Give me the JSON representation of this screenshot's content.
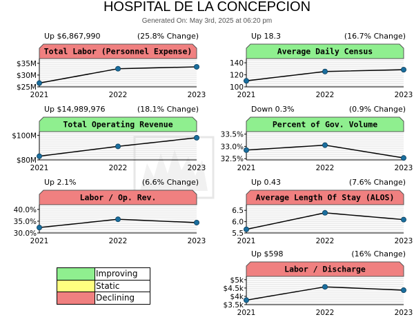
{
  "header": {
    "title": "HOSPITAL DE LA CONCEPCION",
    "subtitle": "Generated On: May 3rd, 2025 at 06:20 pm"
  },
  "colors": {
    "improving": "#8fef8f",
    "static": "#ffff80",
    "declining": "#f08080",
    "line": "#000000",
    "marker": "#1a6e9e"
  },
  "legend": [
    {
      "label": "Improving",
      "status": "improving"
    },
    {
      "label": "Static",
      "status": "static"
    },
    {
      "label": "Declining",
      "status": "declining"
    }
  ],
  "chart_data": [
    {
      "type": "line",
      "title": "Total Labor (Personnel Expense)",
      "change_text": "Up $6,867,990",
      "pct_text": "(25.8% Change)",
      "status": "declining",
      "categories": [
        "2021",
        "2022",
        "2023"
      ],
      "values": [
        26600000,
        32700000,
        33500000
      ],
      "ylim": [
        25000000,
        37000000
      ],
      "yticks": [
        {
          "v": 25000000,
          "label": "$25M"
        },
        {
          "v": 30000000,
          "label": "$30M"
        },
        {
          "v": 35000000,
          "label": "$35M"
        }
      ]
    },
    {
      "type": "line",
      "title": "Average Daily Census",
      "change_text": "Up 18.3",
      "pct_text": "(16.7% Change)",
      "status": "improving",
      "categories": [
        "2021",
        "2022",
        "2023"
      ],
      "values": [
        110,
        125.5,
        128.5
      ],
      "ylim": [
        100,
        147
      ],
      "yticks": [
        {
          "v": 100,
          "label": "100"
        },
        {
          "v": 120,
          "label": "120"
        },
        {
          "v": 140,
          "label": "140"
        }
      ]
    },
    {
      "type": "line",
      "title": "Total Operating Revenue",
      "change_text": "Up $14,989,976",
      "pct_text": "(18.1% Change)",
      "status": "improving",
      "categories": [
        "2021",
        "2022",
        "2023"
      ],
      "values": [
        83000000,
        91000000,
        98000000
      ],
      "ylim": [
        80000000,
        103000000
      ],
      "yticks": [
        {
          "v": 80000000,
          "label": "$80M"
        },
        {
          "v": 100000000,
          "label": "$100M"
        }
      ]
    },
    {
      "type": "line",
      "title": "Percent of Gov. Volume",
      "change_text": "Down 0.3%",
      "pct_text": "(0.9% Change)",
      "status": "improving",
      "categories": [
        "2021",
        "2022",
        "2023"
      ],
      "values": [
        32.85,
        33.05,
        32.53
      ],
      "ylim": [
        32.45,
        33.6
      ],
      "yticks": [
        {
          "v": 32.5,
          "label": "32.5%"
        },
        {
          "v": 33.0,
          "label": "33.0%"
        },
        {
          "v": 33.5,
          "label": "33.5%"
        }
      ]
    },
    {
      "type": "line",
      "title": "Labor / Op. Rev.",
      "change_text": "Up 2.1%",
      "pct_text": "(6.6% Change)",
      "status": "declining",
      "categories": [
        "2021",
        "2022",
        "2023"
      ],
      "values": [
        32.3,
        35.8,
        34.4
      ],
      "ylim": [
        30,
        42
      ],
      "yticks": [
        {
          "v": 30,
          "label": "30.0%"
        },
        {
          "v": 35,
          "label": "35.0%"
        },
        {
          "v": 40,
          "label": "40.0%"
        }
      ]
    },
    {
      "type": "line",
      "title": "Average Length Of Stay (ALOS)",
      "change_text": "Up 0.43",
      "pct_text": "(7.6% Change)",
      "status": "declining",
      "categories": [
        "2021",
        "2022",
        "2023"
      ],
      "values": [
        5.66,
        6.39,
        6.09
      ],
      "ylim": [
        5.5,
        6.75
      ],
      "yticks": [
        {
          "v": 5.5,
          "label": "5.5"
        },
        {
          "v": 6.0,
          "label": "6.0"
        },
        {
          "v": 6.5,
          "label": "6.5"
        }
      ]
    },
    {
      "type": "line",
      "title": "Labor / Discharge",
      "change_text": "Up $598",
      "pct_text": "(16% Change)",
      "status": "declining",
      "categories": [
        "2021",
        "2022",
        "2023"
      ],
      "values": [
        3770,
        4570,
        4370
      ],
      "ylim": [
        3500,
        5200
      ],
      "yticks": [
        {
          "v": 3500,
          "label": "$3.5k"
        },
        {
          "v": 4000,
          "label": "$4k"
        },
        {
          "v": 4500,
          "label": "$4.5k"
        },
        {
          "v": 5000,
          "label": "$5k"
        }
      ]
    }
  ]
}
